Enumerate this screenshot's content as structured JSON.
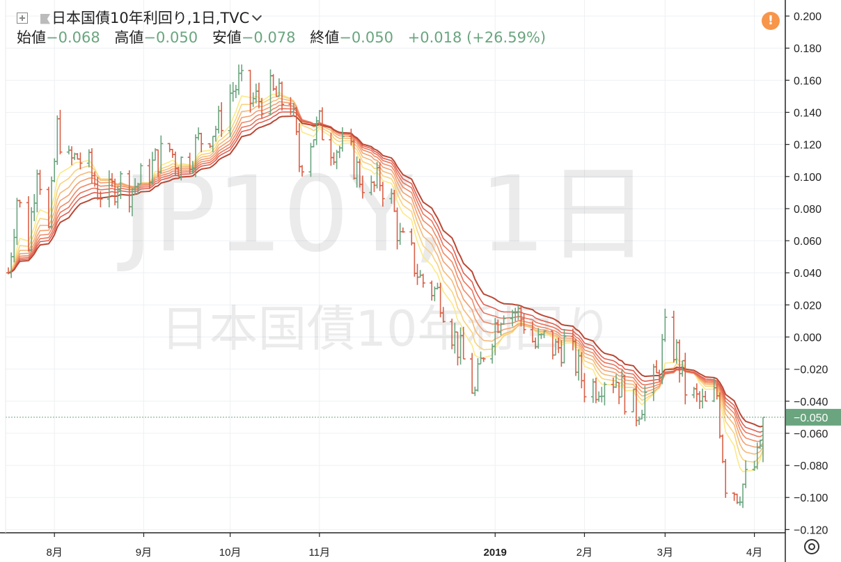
{
  "header": {
    "title": "日本国債10年利回り",
    "sep1": ", ",
    "interval": "1日",
    "sep2": ", ",
    "source": "TVC",
    "ohlc": {
      "open_label": "始値",
      "open": "−0.068",
      "high_label": "高値",
      "high": "−0.050",
      "low_label": "安値",
      "low": "−0.078",
      "close_label": "終値",
      "close": "−0.050",
      "change": "+0.018",
      "change_pct": "(+26.59%)"
    }
  },
  "watermark": {
    "symbol_line": "JP10Y, 1日",
    "name_line": "日本国債10年利回り"
  },
  "price_badge": "−0.050",
  "icons": {
    "add": "plus-square-icon",
    "flag": "flag-icon",
    "alert": "exclamation-icon",
    "settings": "gear-icon"
  },
  "alert_glyph": "!",
  "colors": {
    "up": "#6aa57f",
    "down": "#d95f46",
    "ribbon": [
      "#fbe987",
      "#f8d27e",
      "#f5b978",
      "#f2a070",
      "#ee8a66",
      "#e8735c",
      "#e05e50",
      "#b94835"
    ],
    "badge": "#6aa57f",
    "alert": "#f7954a"
  },
  "chart_data": {
    "type": "ohlc",
    "x_axis": {
      "labels": [
        "8月",
        "9月",
        "10月",
        "11月",
        "2019",
        "2月",
        "3月",
        "4月"
      ],
      "label_dates": [
        "2018-08-01",
        "2018-09-01",
        "2018-10-01",
        "2018-11-01",
        "2019-01-01",
        "2019-02-01",
        "2019-03-01",
        "2019-04-01"
      ],
      "start": "2018-07-16",
      "end": "2019-04-04"
    },
    "y_axis": {
      "range": [
        -0.122,
        0.21
      ],
      "ticks": [
        0.2,
        0.18,
        0.16,
        0.14,
        0.12,
        0.1,
        0.08,
        0.06,
        0.04,
        0.02,
        0.0,
        -0.02,
        -0.04,
        -0.06,
        -0.08,
        -0.1,
        -0.12
      ],
      "tick_labels": [
        "0.200",
        "0.180",
        "0.160",
        "0.140",
        "0.120",
        "0.100",
        "0.080",
        "0.060",
        "0.040",
        "0.020",
        "0.000",
        "−0.020",
        "−0.040",
        "−0.060",
        "−0.080",
        "−0.100",
        "−0.120"
      ],
      "grid": true
    },
    "last_value": -0.05,
    "close_series": {
      "dates": [
        "2018-07-16",
        "2018-07-19",
        "2018-07-23",
        "2018-07-26",
        "2018-07-30",
        "2018-08-02",
        "2018-08-06",
        "2018-08-09",
        "2018-08-13",
        "2018-08-16",
        "2018-08-20",
        "2018-08-23",
        "2018-08-27",
        "2018-08-30",
        "2018-09-03",
        "2018-09-06",
        "2018-09-10",
        "2018-09-13",
        "2018-09-17",
        "2018-09-20",
        "2018-09-24",
        "2018-09-27",
        "2018-10-01",
        "2018-10-04",
        "2018-10-08",
        "2018-10-11",
        "2018-10-15",
        "2018-10-18",
        "2018-10-22",
        "2018-10-25",
        "2018-10-29",
        "2018-11-01",
        "2018-11-05",
        "2018-11-08",
        "2018-11-12",
        "2018-11-15",
        "2018-11-19",
        "2018-11-22",
        "2018-11-26",
        "2018-11-29",
        "2018-12-03",
        "2018-12-06",
        "2018-12-10",
        "2018-12-13",
        "2018-12-17",
        "2018-12-20",
        "2018-12-25",
        "2018-12-28",
        "2019-01-04",
        "2019-01-08",
        "2019-01-11",
        "2019-01-15",
        "2019-01-18",
        "2019-01-22",
        "2019-01-25",
        "2019-01-29",
        "2019-02-01",
        "2019-02-05",
        "2019-02-08",
        "2019-02-12",
        "2019-02-15",
        "2019-02-19",
        "2019-02-22",
        "2019-02-26",
        "2019-03-01",
        "2019-03-05",
        "2019-03-08",
        "2019-03-12",
        "2019-03-15",
        "2019-03-19",
        "2019-03-22",
        "2019-03-26",
        "2019-03-29",
        "2019-04-02",
        "2019-04-04"
      ],
      "values": [
        0.04,
        0.087,
        0.06,
        0.11,
        0.065,
        0.13,
        0.108,
        0.112,
        0.105,
        0.092,
        0.088,
        0.098,
        0.092,
        0.096,
        0.104,
        0.112,
        0.117,
        0.108,
        0.113,
        0.122,
        0.128,
        0.132,
        0.152,
        0.158,
        0.147,
        0.148,
        0.152,
        0.148,
        0.146,
        0.108,
        0.124,
        0.132,
        0.12,
        0.118,
        0.112,
        0.1,
        0.09,
        0.098,
        0.084,
        0.06,
        0.05,
        0.036,
        0.03,
        0.026,
        0.004,
        -0.01,
        -0.036,
        -0.008,
        0.02,
        0.016,
        0.01,
        -0.006,
        -0.002,
        -0.008,
        -0.004,
        -0.016,
        -0.03,
        -0.03,
        -0.024,
        -0.026,
        -0.036,
        -0.046,
        -0.036,
        -0.026,
        0.002,
        -0.01,
        -0.032,
        -0.04,
        -0.044,
        -0.036,
        -0.09,
        -0.096,
        -0.09,
        -0.078,
        -0.05
      ]
    },
    "ma_ribbon": {
      "count": 8,
      "values_at_end": [
        -0.055,
        -0.052,
        -0.048,
        -0.044,
        -0.04,
        -0.036,
        -0.032,
        -0.028
      ]
    }
  }
}
